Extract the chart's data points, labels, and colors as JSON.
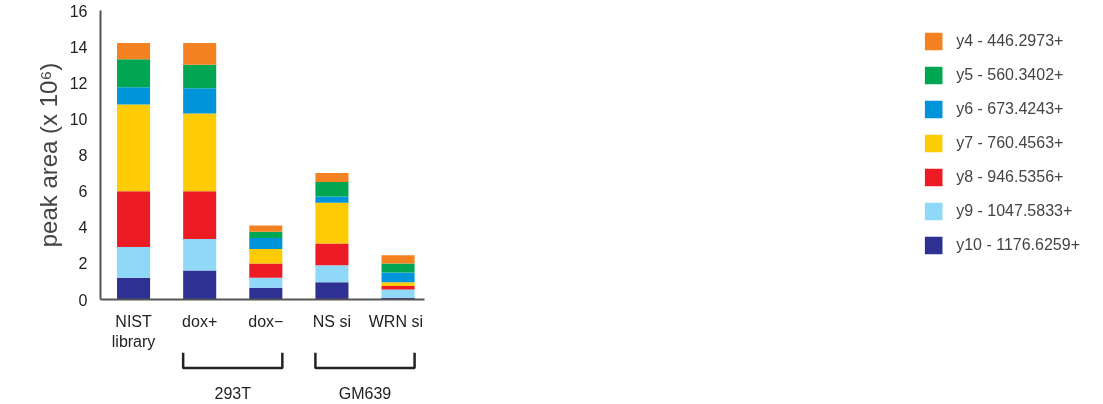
{
  "chart_data": {
    "type": "bar",
    "stacked": true,
    "ylabel": "peak area (x 10⁶)",
    "categories": [
      "NIST\nlibrary",
      "dox+",
      "dox−",
      "NS si",
      "WRN  si"
    ],
    "series": [
      {
        "name": "y10 - 1176.6259+",
        "color": "#2e3192",
        "values": [
          1.2,
          1.6,
          0.65,
          0.95,
          0.1
        ]
      },
      {
        "name": "y9 - 1047.5833+",
        "color": "#8fd8f8",
        "values": [
          1.7,
          1.75,
          0.55,
          0.95,
          0.45
        ]
      },
      {
        "name": "y8 - 946.5356+",
        "color": "#ed1c24",
        "values": [
          3.1,
          2.65,
          0.8,
          1.2,
          0.2
        ]
      },
      {
        "name": "y7 - 760.4563+",
        "color": "#ffcb05",
        "values": [
          4.8,
          4.3,
          0.8,
          2.25,
          0.2
        ]
      },
      {
        "name": "y6 - 673.4243+",
        "color": "#0095da",
        "values": [
          0.95,
          1.4,
          0.6,
          0.35,
          0.55
        ]
      },
      {
        "name": "y5 - 560.3402+",
        "color": "#00a651",
        "values": [
          1.55,
          1.3,
          0.35,
          0.8,
          0.5
        ]
      },
      {
        "name": "y4 - 446.2973+",
        "color": "#f58220",
        "values": [
          0.9,
          1.2,
          0.35,
          0.5,
          0.45
        ]
      }
    ],
    "ylim": [
      0,
      16
    ],
    "yticks": [
      0,
      2,
      4,
      6,
      8,
      10,
      12,
      14,
      16
    ],
    "grid": false,
    "legend": "right",
    "annotations": [
      "293T",
      "GM639"
    ]
  }
}
